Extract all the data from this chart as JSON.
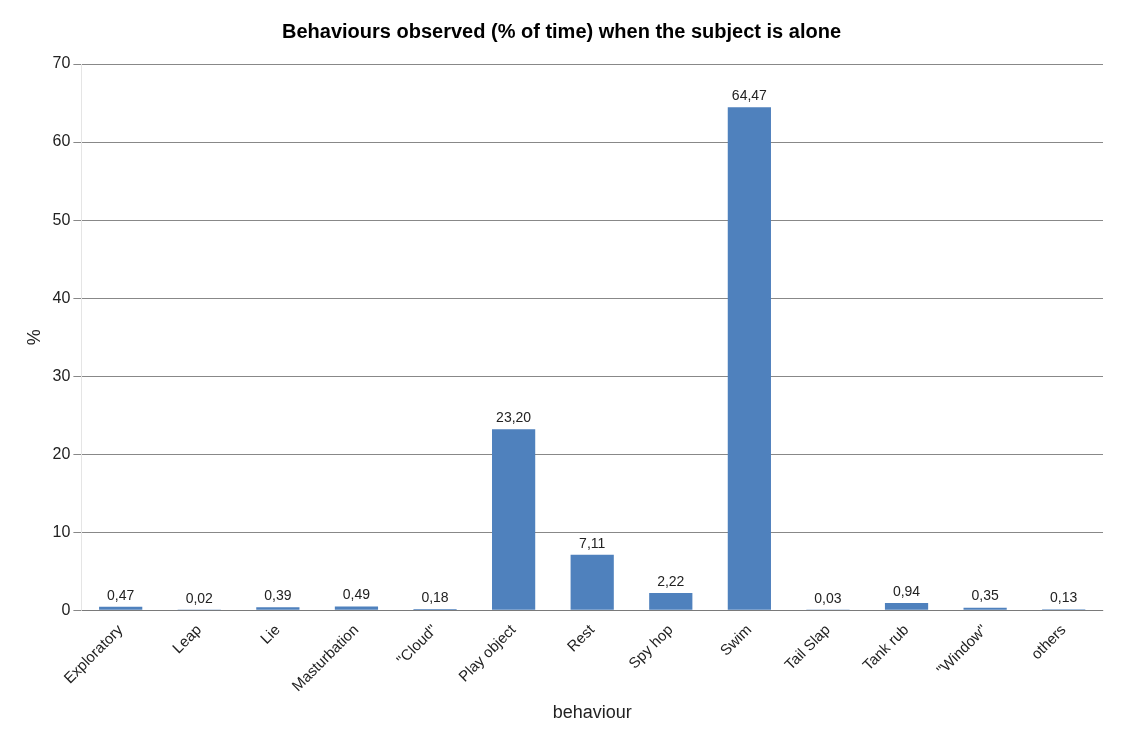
{
  "chart_data": {
    "type": "bar",
    "title": "Behaviours observed (% of time) when the subject is alone",
    "xlabel": "behaviour",
    "ylabel": "%",
    "categories": [
      "Exploratory",
      "Leap",
      "Lie",
      "Masturbation",
      "\"Cloud\"",
      "Play object",
      "Rest",
      "Spy hop",
      "Swim",
      "Tail Slap",
      "Tank rub",
      "\"Window\"",
      "others"
    ],
    "values": [
      0.47,
      0.02,
      0.39,
      0.49,
      0.18,
      23.2,
      7.11,
      2.22,
      64.47,
      0.03,
      0.94,
      0.35,
      0.13
    ],
    "value_labels": [
      "0,47",
      "0,02",
      "0,39",
      "0,49",
      "0,18",
      "23,20",
      "7,11",
      "2,22",
      "64,47",
      "0,03",
      "0,94",
      "0,35",
      "0,13"
    ],
    "color": "#4f81bd",
    "ylim": [
      0,
      70
    ],
    "yticks": [
      0,
      10,
      20,
      30,
      40,
      50,
      60,
      70
    ],
    "grid": "y",
    "legend": false
  }
}
